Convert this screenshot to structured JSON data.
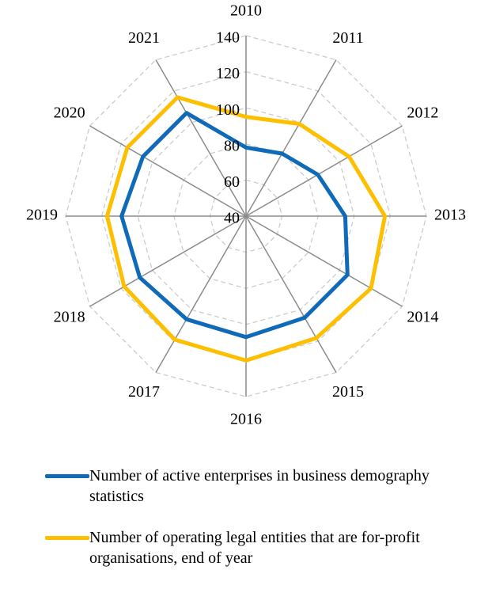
{
  "chart_data": {
    "type": "radar",
    "categories": [
      "2010",
      "2011",
      "2012",
      "2013",
      "2014",
      "2015",
      "2016",
      "2017",
      "2018",
      "2019",
      "2020",
      "2021"
    ],
    "series": [
      {
        "name": "Number of active enterprises in business demography statistics",
        "color": "#0f6bb8",
        "values": [
          78,
          80,
          86,
          95,
          105,
          105,
          107,
          106,
          108,
          109,
          106,
          106
        ]
      },
      {
        "name": "Number of operating legal entities that are for-profit organisations, end of year",
        "color": "#fdbf00",
        "values": [
          95,
          99,
          106,
          117,
          120,
          118,
          120,
          119,
          118,
          117,
          116,
          116
        ]
      }
    ],
    "ylim": [
      40,
      140
    ],
    "yticks": [
      40,
      60,
      80,
      100,
      120,
      140
    ],
    "grid": true
  }
}
